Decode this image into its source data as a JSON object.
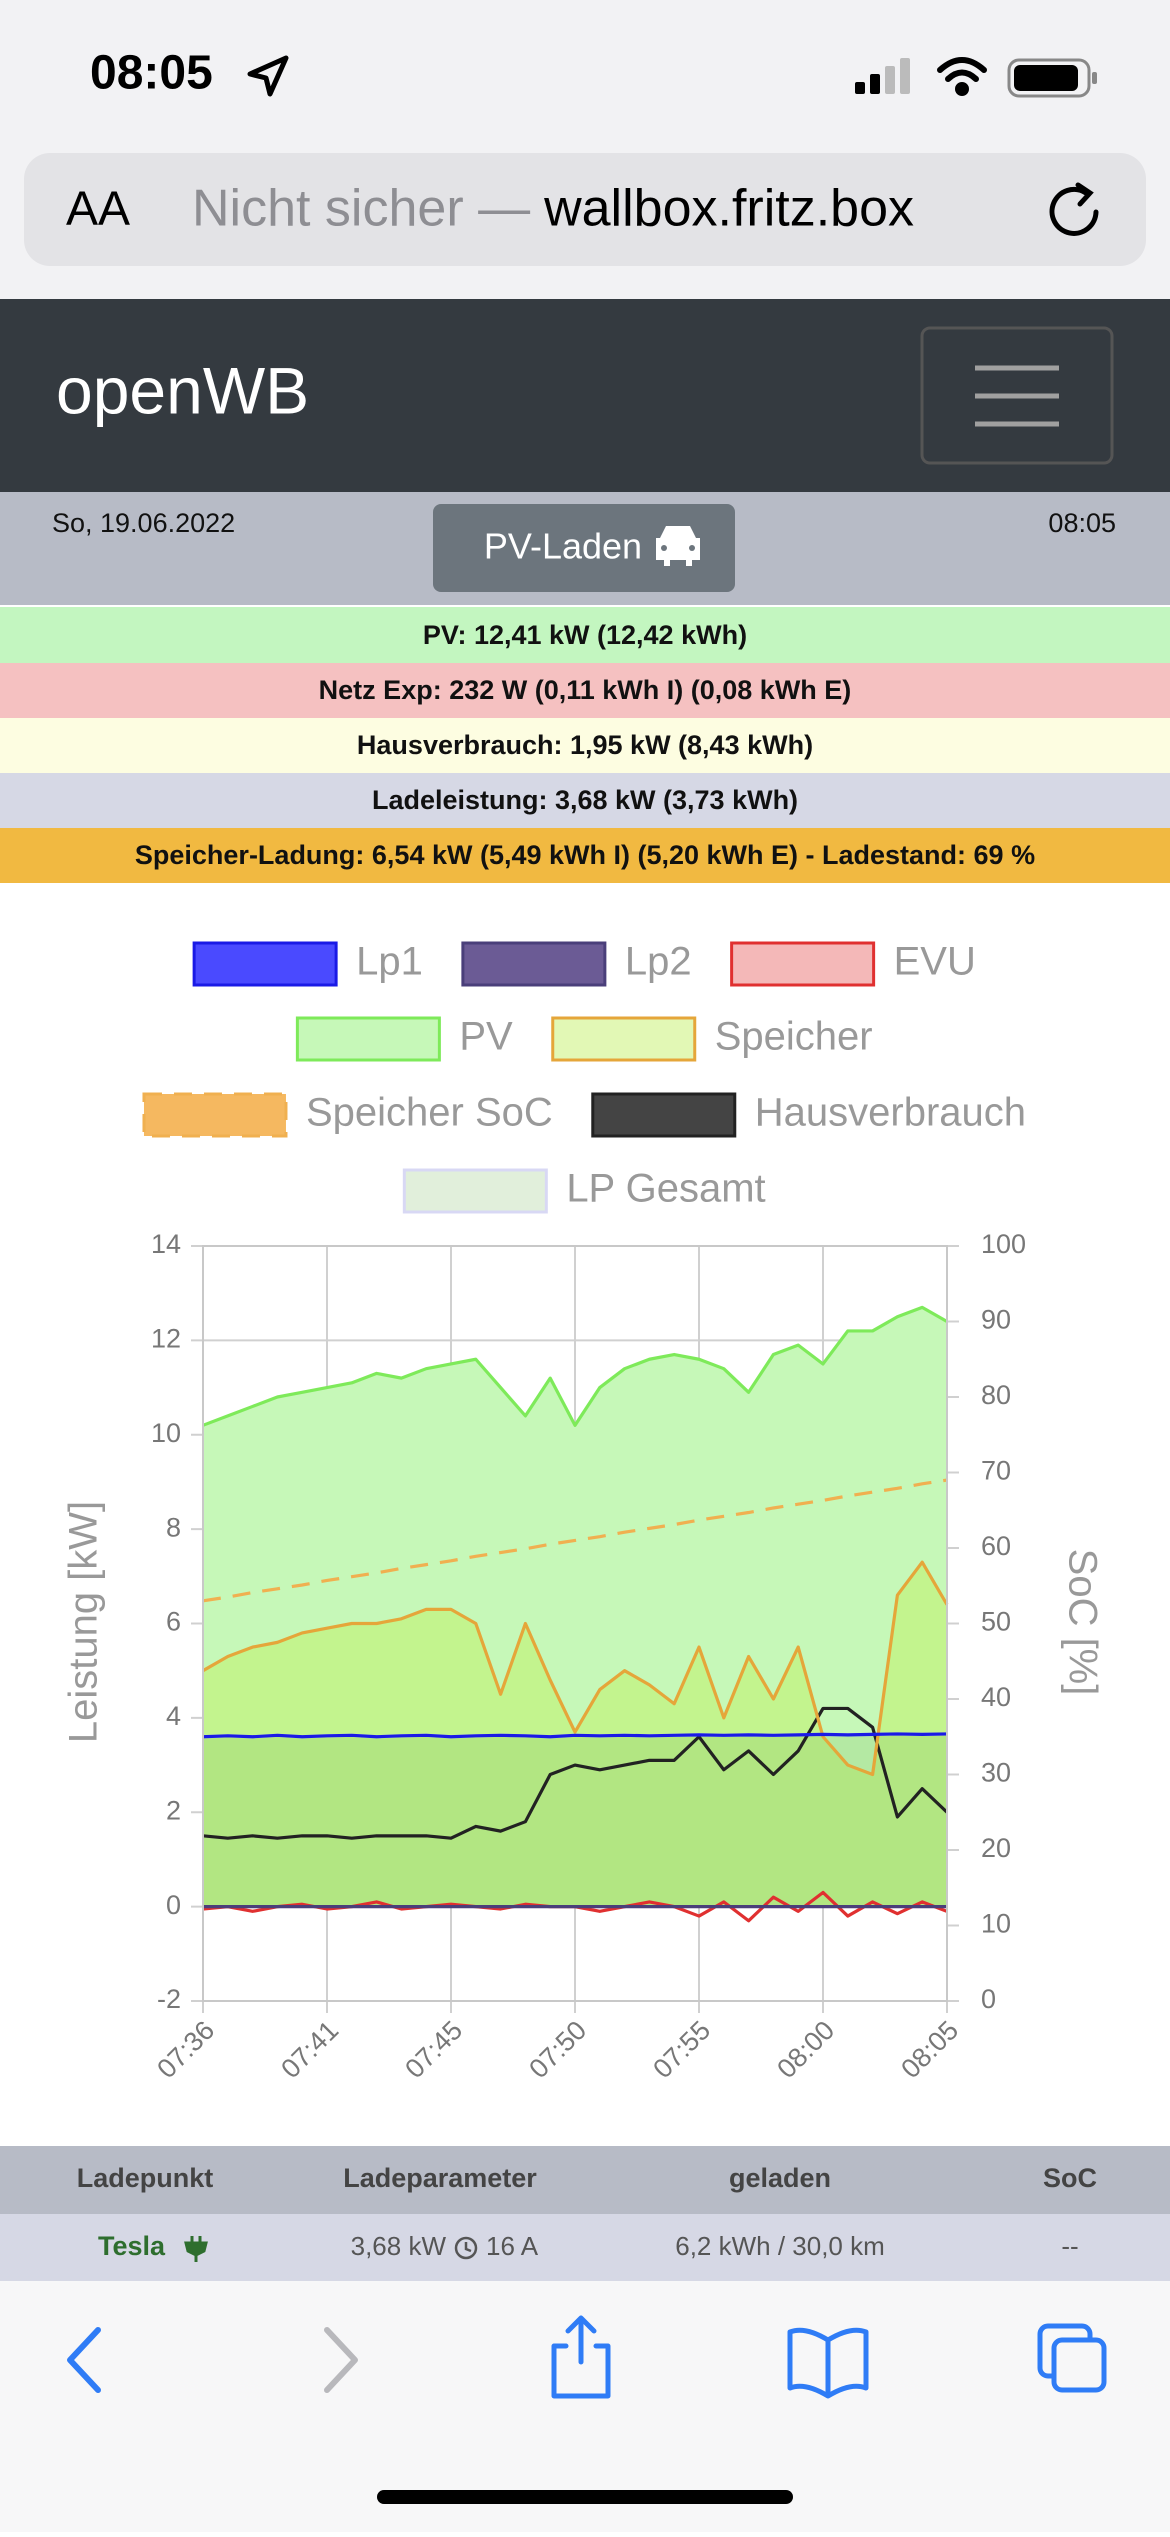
{
  "status_bar": {
    "time": "08:05"
  },
  "url_bar": {
    "text_size": "AA",
    "security": "Nicht sicher —",
    "host": "wallbox.fritz.box"
  },
  "navbar": {
    "brand": "openWB"
  },
  "header": {
    "date": "So, 19.06.2022",
    "mode": "PV-Laden",
    "time": "08:05"
  },
  "info": [
    "PV: 12,41 kW (12,42 kWh)",
    "Netz Exp: 232 W (0,11 kWh I) (0,08 kWh E)",
    "Hausverbrauch: 1,95 kW (8,43 kWh)",
    "Ladeleistung: 3,68 kW (3,73 kWh)",
    "Speicher-Ladung: 6,54 kW (5,49 kWh I) (5,20 kWh E) - Ladestand: 69 %"
  ],
  "chart_data": {
    "type": "line",
    "y_label": "Leistung [kW]",
    "y2_label": "SoC [%]",
    "categories": [
      "07:36",
      null,
      null,
      null,
      null,
      "07:41",
      null,
      null,
      null,
      null,
      "07:45",
      null,
      null,
      null,
      null,
      "07:50",
      null,
      null,
      null,
      null,
      "07:55",
      null,
      null,
      null,
      null,
      "08:00",
      null,
      null,
      null,
      null,
      "08:05"
    ],
    "ylim": [
      -2,
      14
    ],
    "yticks": [
      -2,
      0,
      2,
      4,
      6,
      8,
      10,
      12,
      14
    ],
    "y2lim": [
      0,
      100
    ],
    "y2ticks": [
      0,
      10,
      20,
      30,
      40,
      50,
      60,
      70,
      80,
      90,
      100
    ],
    "grid": true,
    "series": [
      {
        "name": "Lp1",
        "color": "#1a1ae6",
        "background": "#4a4aff",
        "fill": false,
        "dashed": false,
        "values": [
          3.6,
          3.62,
          3.6,
          3.63,
          3.6,
          3.62,
          3.63,
          3.6,
          3.62,
          3.63,
          3.6,
          3.62,
          3.63,
          3.62,
          3.6,
          3.63,
          3.62,
          3.63,
          3.62,
          3.63,
          3.64,
          3.63,
          3.64,
          3.63,
          3.64,
          3.65,
          3.64,
          3.65,
          3.66,
          3.65,
          3.66
        ]
      },
      {
        "name": "Lp2",
        "color": "#4a3f7a",
        "background": "#6b5b95",
        "fill": false,
        "dashed": false,
        "values": [
          0,
          0,
          0,
          0,
          0,
          0,
          0,
          0,
          0,
          0,
          0,
          0,
          0,
          0,
          0,
          0,
          0,
          0,
          0,
          0,
          0,
          0,
          0,
          0,
          0,
          0,
          0,
          0,
          0,
          0,
          0
        ]
      },
      {
        "name": "EVU",
        "color": "#e03030",
        "background": "#f4b8b8",
        "fill": false,
        "dashed": false,
        "values": [
          -0.05,
          0,
          -0.1,
          0,
          0.05,
          -0.05,
          0,
          0.1,
          -0.05,
          0,
          0.05,
          0,
          -0.05,
          0.05,
          0,
          0,
          -0.1,
          0,
          0.1,
          0,
          -0.2,
          0.1,
          -0.3,
          0.2,
          -0.1,
          0.3,
          -0.2,
          0.1,
          -0.15,
          0.1,
          -0.1
        ]
      },
      {
        "name": "PV",
        "color": "#7eea5a",
        "background": "#c6f8b8",
        "fill": true,
        "dashed": false,
        "values": [
          10.2,
          10.4,
          10.6,
          10.8,
          10.9,
          11.0,
          11.1,
          11.3,
          11.2,
          11.4,
          11.5,
          11.6,
          11.0,
          10.4,
          11.2,
          10.2,
          11.0,
          11.4,
          11.6,
          11.7,
          11.6,
          11.4,
          10.9,
          11.7,
          11.9,
          11.5,
          12.2,
          12.2,
          12.5,
          12.7,
          12.4
        ]
      },
      {
        "name": "Speicher",
        "color": "#e5a63a",
        "background": "rgba(190,240,90,0.45)",
        "fill": true,
        "dashed": false,
        "values": [
          5.0,
          5.3,
          5.5,
          5.6,
          5.8,
          5.9,
          6.0,
          6.0,
          6.1,
          6.3,
          6.3,
          6.0,
          4.5,
          6.0,
          4.8,
          3.7,
          4.6,
          5.0,
          4.7,
          4.3,
          5.5,
          4.0,
          5.3,
          4.4,
          5.5,
          3.6,
          3.0,
          2.8,
          6.6,
          7.3,
          6.4
        ]
      },
      {
        "name": "Speicher SoC",
        "color": "#f0b050",
        "background": "#f5b860",
        "fill": false,
        "dashed": true,
        "axis": "y2",
        "values": [
          53.0,
          53.5,
          54.1,
          54.6,
          55.1,
          55.7,
          56.2,
          56.7,
          57.3,
          57.8,
          58.3,
          58.9,
          59.4,
          59.9,
          60.5,
          61.0,
          61.5,
          62.1,
          62.6,
          63.1,
          63.7,
          64.2,
          64.7,
          65.3,
          65.8,
          66.3,
          66.9,
          67.4,
          67.9,
          68.5,
          69.0
        ]
      },
      {
        "name": "Hausverbrauch",
        "color": "#222222",
        "background": "#444444",
        "fill": false,
        "dashed": false,
        "values": [
          1.5,
          1.45,
          1.5,
          1.45,
          1.5,
          1.5,
          1.45,
          1.5,
          1.5,
          1.5,
          1.45,
          1.7,
          1.6,
          1.8,
          2.8,
          3.0,
          2.9,
          3.0,
          3.1,
          3.1,
          3.6,
          2.9,
          3.3,
          2.8,
          3.3,
          4.2,
          4.2,
          3.8,
          1.9,
          2.5,
          2.0
        ]
      },
      {
        "name": "LP Gesamt",
        "color": "#d8d8f4",
        "background": "rgba(120,180,90,0.22)",
        "fill": true,
        "dashed": false,
        "values": [
          3.6,
          3.62,
          3.6,
          3.63,
          3.6,
          3.62,
          3.63,
          3.6,
          3.62,
          3.63,
          3.6,
          3.62,
          3.63,
          3.62,
          3.6,
          3.63,
          3.62,
          3.63,
          3.62,
          3.63,
          3.64,
          3.63,
          3.64,
          3.63,
          3.64,
          3.65,
          3.64,
          3.65,
          3.66,
          3.65,
          3.66
        ]
      }
    ]
  },
  "table": {
    "header": [
      "Ladepunkt",
      "Ladeparameter",
      "geladen",
      "SoC"
    ],
    "rows": [
      {
        "name": "Tesla",
        "power": "3,68 kW",
        "current": "16 A",
        "charged": "6,2 kWh / 30,0 km",
        "soc": "--"
      }
    ]
  }
}
